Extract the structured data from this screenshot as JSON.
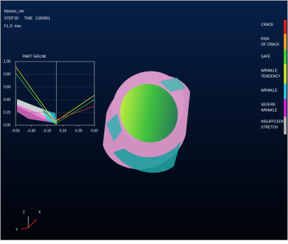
{
  "header": {
    "title": "titanium_sim",
    "step": "STEP 50",
    "time_label": "TIME",
    "time": "2.850501",
    "result": "F.L.D. max"
  },
  "legend": [
    {
      "lines": [
        "CRACK"
      ],
      "color": "#e0201c"
    },
    {
      "lines": [
        "RISK",
        "OF CRACK"
      ],
      "color": "#f0a020"
    },
    {
      "lines": [
        "SAFE"
      ],
      "color": "#40d030"
    },
    {
      "lines": [
        "WRINKLE",
        "TENDENCY"
      ],
      "color": "#c8e020"
    },
    {
      "lines": [
        "WRINKLE"
      ],
      "color": "#30c0e0"
    },
    {
      "lines": [
        "SEVERE",
        "WRINKLE"
      ],
      "color": "#d020d0"
    },
    {
      "lines": [
        "INSUFFICIENT",
        "STRETCH"
      ],
      "color": "#b0b0b0"
    }
  ],
  "chart_data": {
    "type": "line",
    "title": "PART: 545LNK",
    "xlim": [
      -0.5,
      0.5
    ],
    "xticks": [
      {
        "value": -0.5,
        "label": "-0.50"
      },
      {
        "value": -0.3,
        "label": "-0.30"
      },
      {
        "value": -0.1,
        "label": "-0.10"
      },
      {
        "value": 0.1,
        "label": "0.10"
      },
      {
        "value": 0.3,
        "label": "0.30"
      },
      {
        "value": 0.5,
        "label": "0.50"
      }
    ],
    "ylim": [
      0,
      1
    ],
    "yticks": [
      {
        "value": 0,
        "label": "0.00"
      },
      {
        "value": 0.2,
        "label": "0.20"
      },
      {
        "value": 0.4,
        "label": "0.40"
      },
      {
        "value": 0.6,
        "label": "0.60"
      },
      {
        "value": 0.8,
        "label": "0.80"
      },
      {
        "value": 1,
        "label": "1.00"
      }
    ],
    "series": [
      {
        "color": "#e8e820",
        "x": [
          -0.5,
          0.0,
          0.5
        ],
        "values": [
          0.92,
          0.05,
          0.47
        ]
      },
      {
        "color": "#40c040",
        "x": [
          -0.5,
          0.0,
          0.5
        ],
        "values": [
          0.82,
          0.02,
          0.4
        ]
      },
      {
        "color": "#e03030",
        "x": [
          -0.15,
          0.0,
          0.5
        ],
        "values": [
          0.22,
          0.08,
          0.3
        ]
      }
    ]
  },
  "triad": {
    "z": "Z",
    "x": "X",
    "y": "Y"
  }
}
